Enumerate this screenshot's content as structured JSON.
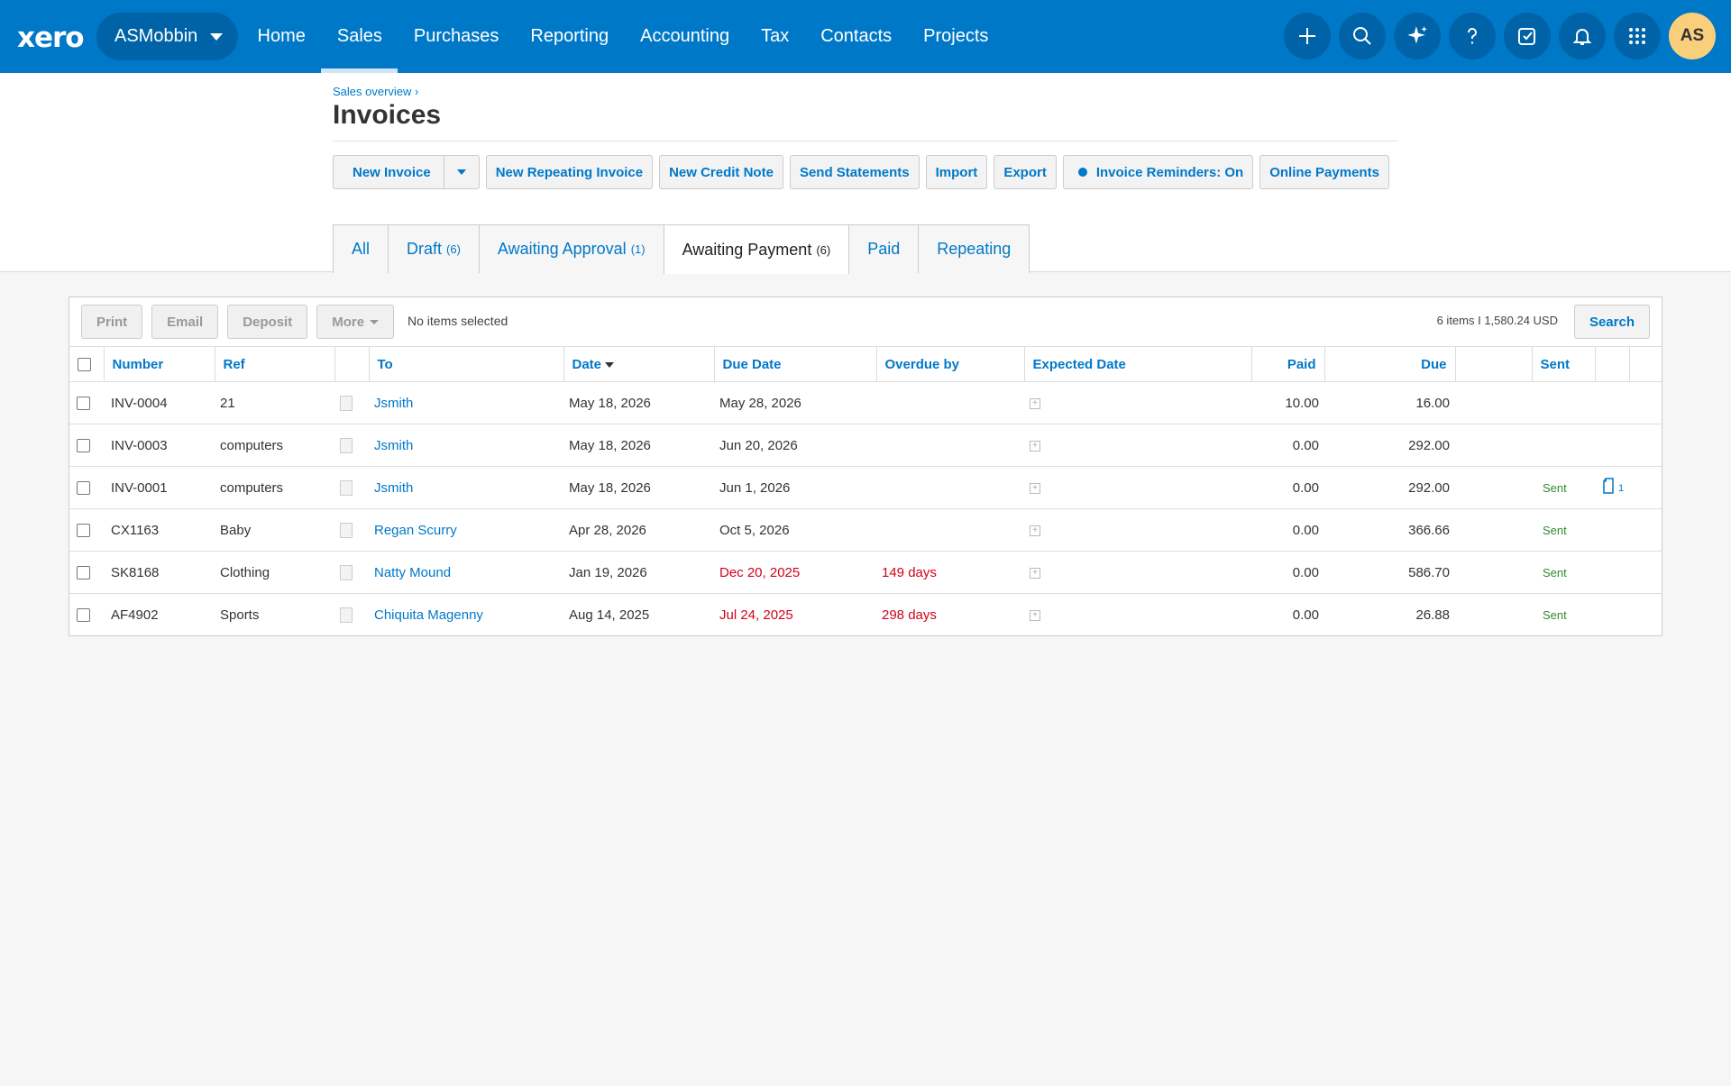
{
  "nav": {
    "logo": "xero",
    "org": "ASMobbin",
    "links": [
      {
        "label": "Home",
        "name": "nav-home"
      },
      {
        "label": "Sales",
        "name": "nav-sales"
      },
      {
        "label": "Purchases",
        "name": "nav-purchases"
      },
      {
        "label": "Reporting",
        "name": "nav-reporting"
      },
      {
        "label": "Accounting",
        "name": "nav-accounting"
      },
      {
        "label": "Tax",
        "name": "nav-tax"
      },
      {
        "label": "Contacts",
        "name": "nav-contacts"
      },
      {
        "label": "Projects",
        "name": "nav-projects"
      }
    ],
    "active": "Sales",
    "avatar": "AS",
    "icons": [
      "plus-icon",
      "search-icon",
      "sparkle-icon",
      "help-icon",
      "tasks-icon",
      "bell-icon",
      "apps-grid-icon"
    ]
  },
  "header": {
    "breadcrumb": "Sales overview ›",
    "title": "Invoices"
  },
  "toolbar": {
    "new_invoice": "New Invoice",
    "new_repeating": "New Repeating Invoice",
    "new_credit_note": "New Credit Note",
    "send_statements": "Send Statements",
    "import": "Import",
    "export": "Export",
    "reminders": "Invoice Reminders: On",
    "online_payments": "Online Payments"
  },
  "tabs": [
    {
      "label": "All",
      "count": ""
    },
    {
      "label": "Draft",
      "count": "(6)"
    },
    {
      "label": "Awaiting Approval",
      "count": "(1)"
    },
    {
      "label": "Awaiting Payment",
      "count": "(6)"
    },
    {
      "label": "Paid",
      "count": ""
    },
    {
      "label": "Repeating",
      "count": ""
    }
  ],
  "panel": {
    "print": "Print",
    "email": "Email",
    "deposit": "Deposit",
    "more": "More",
    "no_items": "No items selected",
    "summary": "6 items  I 1,580.24  USD",
    "search": "Search"
  },
  "columns": {
    "number": "Number",
    "ref": "Ref",
    "to": "To",
    "date": "Date",
    "due_date": "Due Date",
    "overdue": "Overdue by",
    "expected": "Expected Date",
    "paid": "Paid",
    "due": "Due",
    "sent": "Sent"
  },
  "rows": [
    {
      "number": "INV-0004",
      "ref": "21",
      "to": "Jsmith",
      "date": "May 18, 2026",
      "due_date": "May 28, 2026",
      "overdue": "",
      "paid": "10.00",
      "due": "16.00",
      "sent": "",
      "files": ""
    },
    {
      "number": "INV-0003",
      "ref": "computers",
      "to": "Jsmith",
      "date": "May 18, 2026",
      "due_date": "Jun 20, 2026",
      "overdue": "",
      "paid": "0.00",
      "due": "292.00",
      "sent": "",
      "files": ""
    },
    {
      "number": "INV-0001",
      "ref": "computers",
      "to": "Jsmith",
      "date": "May 18, 2026",
      "due_date": "Jun 1, 2026",
      "overdue": "",
      "paid": "0.00",
      "due": "292.00",
      "sent": "Sent",
      "files": "1"
    },
    {
      "number": "CX1163",
      "ref": "Baby",
      "to": "Regan Scurry",
      "date": "Apr 28, 2026",
      "due_date": "Oct 5, 2026",
      "overdue": "",
      "paid": "0.00",
      "due": "366.66",
      "sent": "Sent",
      "files": ""
    },
    {
      "number": "SK8168",
      "ref": "Clothing",
      "to": "Natty Mound",
      "date": "Jan 19, 2026",
      "due_date": "Dec 20, 2025",
      "overdue": "149 days",
      "paid": "0.00",
      "due": "586.70",
      "sent": "Sent",
      "files": ""
    },
    {
      "number": "AF4902",
      "ref": "Sports",
      "to": "Chiquita Magenny",
      "date": "Aug 14, 2025",
      "due_date": "Jul 24, 2025",
      "overdue": "298 days",
      "paid": "0.00",
      "due": "26.88",
      "sent": "Sent",
      "files": ""
    }
  ]
}
